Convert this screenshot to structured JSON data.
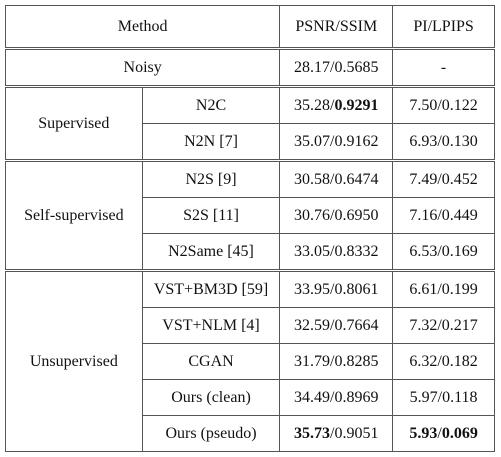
{
  "table": {
    "header": [
      "Method",
      "PSNR/SSIM",
      "PI/LPIPS"
    ],
    "noisy": {
      "method": "Noisy",
      "psnr_ssim": "28.17/0.5685",
      "pi_lpips": "-"
    },
    "groups": [
      {
        "name": "Supervised",
        "rows": [
          {
            "method": "N2C",
            "psnr_ssim": [
              {
                "text": "35.28/"
              },
              {
                "text": "0.9291",
                "bold": true
              }
            ],
            "pi_lpips": "7.50/0.122"
          },
          {
            "method": "N2N [7]",
            "psnr_ssim": "35.07/0.9162",
            "pi_lpips": "6.93/0.130"
          }
        ]
      },
      {
        "name": "Self-supervised",
        "rows": [
          {
            "method": "N2S [9]",
            "psnr_ssim": "30.58/0.6474",
            "pi_lpips": "7.49/0.452"
          },
          {
            "method": "S2S [11]",
            "psnr_ssim": "30.76/0.6950",
            "pi_lpips": "7.16/0.449"
          },
          {
            "method": "N2Same [45]",
            "psnr_ssim": "33.05/0.8332",
            "pi_lpips": "6.53/0.169"
          }
        ]
      },
      {
        "name": "Unsupervised",
        "rows": [
          {
            "method": "VST+BM3D [59]",
            "psnr_ssim": "33.95/0.8061",
            "pi_lpips": "6.61/0.199"
          },
          {
            "method": "VST+NLM [4]",
            "psnr_ssim": "32.59/0.7664",
            "pi_lpips": "7.32/0.217"
          },
          {
            "method": "CGAN",
            "psnr_ssim": "31.79/0.8285",
            "pi_lpips": "6.32/0.182"
          },
          {
            "method": "Ours (clean)",
            "psnr_ssim": "34.49/0.8969",
            "pi_lpips": "5.97/0.118"
          },
          {
            "method": "Ours (pseudo)",
            "psnr_ssim": [
              {
                "text": "35.73",
                "bold": true
              },
              {
                "text": "/0.9051"
              }
            ],
            "pi_lpips": [
              {
                "text": "5.93",
                "bold": true
              },
              {
                "text": "/"
              },
              {
                "text": "0.069",
                "bold": true
              }
            ]
          }
        ]
      }
    ]
  }
}
